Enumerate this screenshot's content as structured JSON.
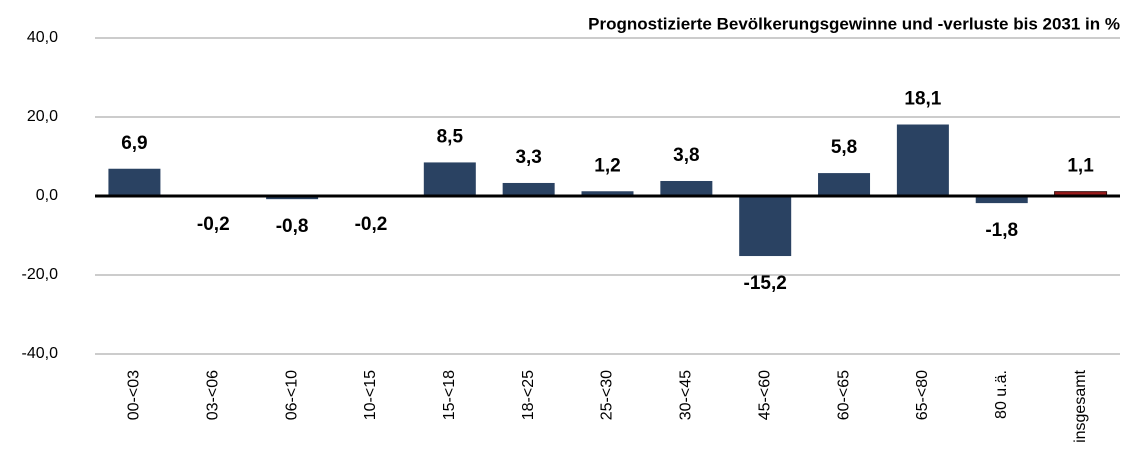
{
  "chart_data": {
    "type": "bar",
    "title": "Prognostizierte Bevölkerungsgewinne und -verluste bis 2031 in %",
    "categories": [
      "00-<03",
      "03-<06",
      "06-<10",
      "10-<15",
      "15-<18",
      "18-<25",
      "25-<30",
      "30-<45",
      "45-<60",
      "60-<65",
      "65-<80",
      "80 u.ä.",
      "insgesamt"
    ],
    "values": [
      6.9,
      -0.2,
      -0.8,
      -0.2,
      8.5,
      3.3,
      1.2,
      3.8,
      -15.2,
      5.8,
      18.1,
      -1.8,
      1.1
    ],
    "value_labels": [
      "6,9",
      "-0,2",
      "-0,8",
      "-0,2",
      "8,5",
      "3,3",
      "1,2",
      "3,8",
      "-15,2",
      "5,8",
      "18,1",
      "-1,8",
      "1,1"
    ],
    "colors": [
      "#2a4262",
      "#2a4262",
      "#2a4262",
      "#2a4262",
      "#2a4262",
      "#2a4262",
      "#2a4262",
      "#2a4262",
      "#2a4262",
      "#2a4262",
      "#2a4262",
      "#2a4262",
      "#9b1c1c"
    ],
    "ylim": [
      -40,
      40
    ],
    "yticks": [
      {
        "value": -40,
        "label": "-40,0"
      },
      {
        "value": -20,
        "label": "-20,0"
      },
      {
        "value": 0,
        "label": "0,0"
      },
      {
        "value": 20,
        "label": "20,0"
      },
      {
        "value": 40,
        "label": "40,0"
      }
    ],
    "grid": true
  }
}
